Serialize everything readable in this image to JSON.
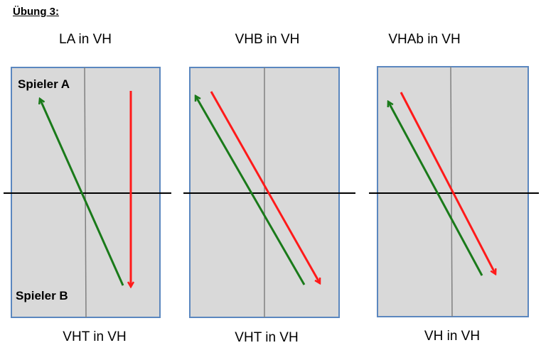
{
  "heading": "Übung 3:",
  "diagrams": [
    {
      "top_label": "LA in VH",
      "bottom_label": "VHT in VH",
      "player_top": "Spieler A",
      "player_bottom": "Spieler B"
    },
    {
      "top_label": "VHB in VH",
      "bottom_label": "VHT in VH"
    },
    {
      "top_label": "VHAb in VH",
      "bottom_label": "VH in VH"
    }
  ],
  "colors": {
    "court_fill": "#d9d9d9",
    "court_border": "#5b87bf",
    "center_line": "#808080",
    "net": "#000000",
    "green_arrow": "#1a7a1a",
    "red_arrow": "#ff1a1a"
  }
}
